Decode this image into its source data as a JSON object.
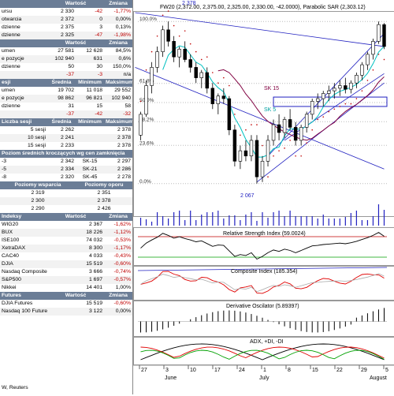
{
  "left_panel": {
    "top": {
      "columns": [
        "",
        "Wartość",
        "Zmiana"
      ],
      "rows": [
        [
          "ursu",
          "2 330",
          "-42",
          "-1,77%"
        ],
        [
          "otwarcia",
          "2 372",
          "0",
          "0,00%"
        ],
        [
          "dzienne",
          "2 375",
          "3",
          "0,13%"
        ],
        [
          "dzienne",
          "2 325",
          "-47",
          "-1,98%"
        ]
      ]
    },
    "volume": {
      "columns": [
        "",
        "Wartość",
        "Zmiana"
      ],
      "rows": [
        [
          "umen",
          "27 581",
          "12 628",
          "84,5%"
        ],
        [
          "e pozycje",
          "102 940",
          "631",
          "0,6%"
        ],
        [
          "dzienne",
          "50",
          "30",
          "150,0%"
        ],
        [
          "",
          "-37",
          "-3",
          "n/a"
        ]
      ]
    },
    "sessions": {
      "columns": [
        "esji",
        "Średnia",
        "Minimum",
        "Maksimum"
      ],
      "rows": [
        [
          "umen",
          "19 702",
          "11 018",
          "29 552"
        ],
        [
          "e pozycje",
          "98 862",
          "96 821",
          "102 940"
        ],
        [
          "dzienne",
          "31",
          "15",
          "58"
        ],
        [
          "",
          "-37",
          "-42",
          "-32"
        ]
      ]
    },
    "avg": {
      "columns": [
        "Liczba sesji",
        "Średnia",
        "Minimum",
        "Maksimum"
      ],
      "rows": [
        [
          "5 sesji",
          "2 262",
          "2 378"
        ],
        [
          "10 sesji",
          "2 241",
          "2 378"
        ],
        [
          "15 sesji",
          "2 233",
          "2 378"
        ]
      ]
    },
    "ma_title": "Poziom średnich kroczących wg cen zamknięcia",
    "ma_rows": [
      [
        "-3",
        "2 342",
        "SK-15",
        "2 297"
      ],
      [
        "-5",
        "2 334",
        "SK-21",
        "2 286"
      ],
      [
        "-8",
        "2 320",
        "SK-45",
        "2 278"
      ]
    ],
    "levels": {
      "columns": [
        "Poziomy wsparcia",
        "Poziomy oporu"
      ],
      "rows": [
        [
          "2 319",
          "2 351"
        ],
        [
          "2 300",
          "2 378"
        ],
        [
          "2 290",
          "2 426"
        ]
      ]
    },
    "indices": {
      "columns": [
        "Indeksy",
        "Wartość",
        "Zmiana"
      ],
      "rows": [
        [
          "WIG20",
          "2 367",
          "-1,62%"
        ],
        [
          "BUX",
          "18 226",
          "-1,12%"
        ],
        [
          "ISE100",
          "74 032",
          "-0,53%"
        ],
        [
          "XetraDAX",
          "8 300",
          "-1,17%"
        ],
        [
          "CAC40",
          "4 033",
          "-0,43%"
        ],
        [
          "DJIA",
          "15 519",
          "-0,60%"
        ],
        [
          "Nasdaq Composite",
          "3 666",
          "-0,74%"
        ],
        [
          "S&P500",
          "1 697",
          "-0,57%"
        ],
        [
          "Nikkei",
          "14 401",
          "1,00%"
        ]
      ]
    },
    "futures": {
      "columns": [
        "Futures",
        "Wartość",
        "Zmiana"
      ],
      "rows": [
        [
          "DJIA Futures",
          "15 519",
          "-0,60%"
        ],
        [
          "Nasdaq 100 Futures",
          "3 122",
          "0,00%"
        ]
      ]
    },
    "source": "W, Reuters"
  },
  "chart": {
    "title": "FW20 (2,372.00, 2,375.00, 2,325.00, 2,330.00, -42.0000), Parabolic SAR (2,303.12)",
    "top_label": "2 378",
    "low_label": "2 067",
    "fib_labels": [
      "100.0%",
      "61.8%",
      "50.0%",
      "38.2%",
      "23.6%",
      "0.0%"
    ],
    "ma_labels": [
      "SK 15",
      "SK 5"
    ],
    "rsi_label": "Relative Strength Index (59.0024)",
    "composite_label": "Composite Index (185.354)",
    "derivative_label": "Derivative Oscilator (5.89397)",
    "adx_label": "ADX, +DI, -DI",
    "date_ticks": [
      "27",
      "3",
      "10",
      "17",
      "24",
      "1",
      "8",
      "15",
      "22",
      "29",
      "5"
    ],
    "months": [
      "June",
      "July",
      "August"
    ],
    "colors": {
      "up": "#ffffff",
      "down": "#000000",
      "sk5": "#00c0c0",
      "sk15": "#800040",
      "trend": "#2020c0",
      "sar": "#c00000"
    },
    "candles": [
      [
        2160,
        2205,
        2150,
        2200
      ],
      [
        2200,
        2265,
        2195,
        2255
      ],
      [
        2255,
        2300,
        2240,
        2290
      ],
      [
        2290,
        2330,
        2280,
        2320
      ],
      [
        2320,
        2370,
        2310,
        2362
      ],
      [
        2362,
        2378,
        2330,
        2340
      ],
      [
        2340,
        2350,
        2300,
        2310
      ],
      [
        2310,
        2330,
        2290,
        2325
      ],
      [
        2325,
        2340,
        2300,
        2305
      ],
      [
        2305,
        2315,
        2280,
        2290
      ],
      [
        2290,
        2300,
        2260,
        2270
      ],
      [
        2270,
        2285,
        2250,
        2280
      ],
      [
        2280,
        2290,
        2240,
        2250
      ],
      [
        2250,
        2260,
        2210,
        2220
      ],
      [
        2220,
        2240,
        2200,
        2235
      ],
      [
        2235,
        2250,
        2220,
        2230
      ],
      [
        2230,
        2235,
        2160,
        2170
      ],
      [
        2170,
        2180,
        2100,
        2110
      ],
      [
        2110,
        2140,
        2095,
        2130
      ],
      [
        2130,
        2150,
        2110,
        2120
      ],
      [
        2120,
        2160,
        2110,
        2150
      ],
      [
        2150,
        2160,
        2067,
        2080
      ],
      [
        2080,
        2120,
        2070,
        2110
      ],
      [
        2110,
        2160,
        2100,
        2150
      ],
      [
        2150,
        2190,
        2140,
        2180
      ],
      [
        2180,
        2200,
        2150,
        2165
      ],
      [
        2165,
        2195,
        2155,
        2190
      ],
      [
        2190,
        2210,
        2170,
        2175
      ],
      [
        2175,
        2185,
        2140,
        2150
      ],
      [
        2150,
        2180,
        2140,
        2175
      ],
      [
        2175,
        2205,
        2165,
        2200
      ],
      [
        2200,
        2230,
        2190,
        2225
      ],
      [
        2225,
        2240,
        2210,
        2230
      ],
      [
        2230,
        2245,
        2215,
        2240
      ],
      [
        2240,
        2255,
        2225,
        2245
      ],
      [
        2245,
        2260,
        2230,
        2250
      ],
      [
        2250,
        2265,
        2235,
        2255
      ],
      [
        2255,
        2270,
        2240,
        2248
      ],
      [
        2248,
        2265,
        2240,
        2260
      ],
      [
        2260,
        2280,
        2250,
        2275
      ],
      [
        2275,
        2300,
        2265,
        2295
      ],
      [
        2295,
        2320,
        2285,
        2315
      ],
      [
        2315,
        2345,
        2305,
        2340
      ],
      [
        2340,
        2378,
        2335,
        2372
      ],
      [
        2372,
        2375,
        2325,
        2330
      ]
    ]
  }
}
